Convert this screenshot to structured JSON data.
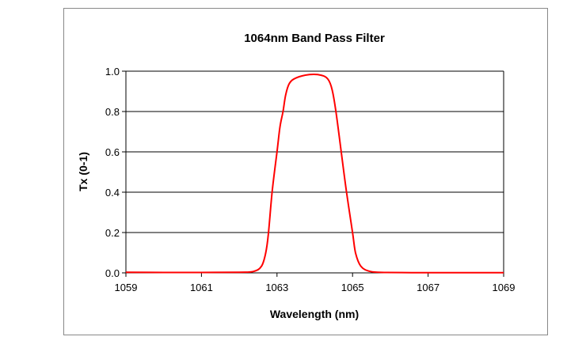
{
  "chart_data": {
    "type": "line",
    "title": "1064nm Band Pass Filter",
    "xlabel": "Wavelength (nm)",
    "ylabel": "Tx (0-1)",
    "xlim": [
      1059,
      1069
    ],
    "ylim": [
      0,
      1.0
    ],
    "xticks": [
      "1059",
      "1061",
      "1063",
      "1065",
      "1067",
      "1069"
    ],
    "yticks": [
      "0.0",
      "0.2",
      "0.4",
      "0.6",
      "0.8",
      "1.0"
    ],
    "grid": "horizontal",
    "legend": "none",
    "series_color": "#ff0000",
    "series": [
      {
        "x": [
          1059,
          1060,
          1061,
          1062,
          1062.38,
          1062.59,
          1062.7,
          1062.77,
          1062.87,
          1063.0,
          1063.08,
          1063.16,
          1063.23,
          1063.33,
          1063.51,
          1063.86,
          1064.17,
          1064.35,
          1064.46,
          1064.56,
          1064.7,
          1064.84,
          1065.0,
          1065.08,
          1065.22,
          1065.47,
          1065.9,
          1067,
          1068,
          1069
        ],
        "y": [
          0.003,
          0.002,
          0.002,
          0.003,
          0.007,
          0.033,
          0.098,
          0.19,
          0.4,
          0.6,
          0.725,
          0.8,
          0.883,
          0.94,
          0.967,
          0.983,
          0.98,
          0.96,
          0.908,
          0.8,
          0.6,
          0.4,
          0.2,
          0.098,
          0.033,
          0.007,
          0.002,
          0.001,
          0.001,
          0.001
        ]
      }
    ]
  }
}
